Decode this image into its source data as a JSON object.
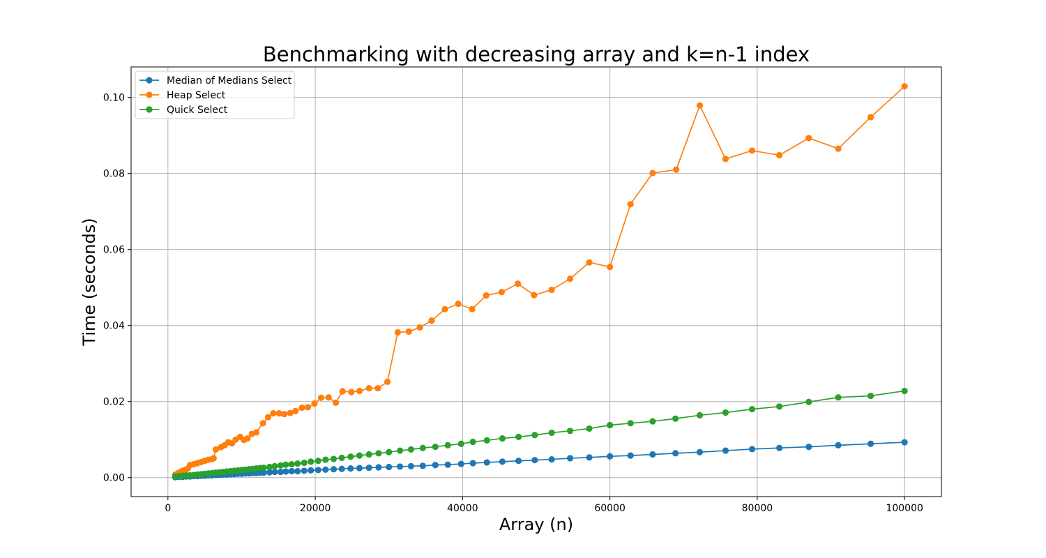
{
  "chart_data": {
    "type": "line",
    "title": "Benchmarking with decreasing array and k=n-1 index",
    "xlabel": "Array (n)",
    "ylabel": "Time (seconds)",
    "xlim": [
      -5000,
      105000
    ],
    "ylim": [
      -0.005,
      0.108
    ],
    "xticks": [
      0,
      20000,
      40000,
      60000,
      80000,
      100000
    ],
    "yticks": [
      0.0,
      0.02,
      0.04,
      0.06,
      0.08,
      0.1
    ],
    "xtick_labels": [
      "0",
      "20000",
      "40000",
      "60000",
      "80000",
      "100000"
    ],
    "ytick_labels": [
      "0.00",
      "0.02",
      "0.04",
      "0.06",
      "0.08",
      "0.10"
    ],
    "grid": true,
    "legend_position": "top-left",
    "markers": "circle",
    "series": [
      {
        "name": "Median of Medians Select",
        "color": "#1f77b4",
        "points": [
          [
            1000,
            0.0001
          ],
          [
            1500,
            0.0002
          ],
          [
            2000,
            0.0002
          ],
          [
            2500,
            0.0003
          ],
          [
            3000,
            0.0003
          ],
          [
            3500,
            0.0004
          ],
          [
            4000,
            0.0004
          ],
          [
            4500,
            0.0005
          ],
          [
            5000,
            0.0005
          ],
          [
            5500,
            0.0006
          ],
          [
            6000,
            0.0006
          ],
          [
            6500,
            0.0007
          ],
          [
            7000,
            0.0007
          ],
          [
            7500,
            0.0008
          ],
          [
            8000,
            0.0008
          ],
          [
            8500,
            0.0009
          ],
          [
            9000,
            0.0009
          ],
          [
            9500,
            0.001
          ],
          [
            10000,
            0.001
          ],
          [
            10500,
            0.0011
          ],
          [
            11000,
            0.0011
          ],
          [
            11500,
            0.0012
          ],
          [
            12000,
            0.0012
          ],
          [
            12500,
            0.0013
          ],
          [
            13000,
            0.0013
          ],
          [
            13800,
            0.0014
          ],
          [
            14500,
            0.0015
          ],
          [
            15300,
            0.0015
          ],
          [
            16000,
            0.0016
          ],
          [
            16800,
            0.0017
          ],
          [
            17600,
            0.0017
          ],
          [
            18500,
            0.0018
          ],
          [
            19400,
            0.0019
          ],
          [
            20400,
            0.002
          ],
          [
            21400,
            0.0021
          ],
          [
            22500,
            0.0022
          ],
          [
            23600,
            0.0023
          ],
          [
            24800,
            0.0024
          ],
          [
            26000,
            0.0025
          ],
          [
            27300,
            0.0026
          ],
          [
            28600,
            0.0027
          ],
          [
            30000,
            0.0028
          ],
          [
            31500,
            0.0029
          ],
          [
            33000,
            0.003
          ],
          [
            34600,
            0.0031
          ],
          [
            36300,
            0.0033
          ],
          [
            38000,
            0.0034
          ],
          [
            39800,
            0.0036
          ],
          [
            41400,
            0.0038
          ],
          [
            43300,
            0.004
          ],
          [
            45400,
            0.0042
          ],
          [
            47600,
            0.0044
          ],
          [
            49800,
            0.0046
          ],
          [
            52100,
            0.0048
          ],
          [
            54600,
            0.0051
          ],
          [
            57200,
            0.0053
          ],
          [
            60000,
            0.0056
          ],
          [
            62800,
            0.0058
          ],
          [
            65800,
            0.0061
          ],
          [
            68900,
            0.0064
          ],
          [
            72200,
            0.0067
          ],
          [
            75700,
            0.0071
          ],
          [
            79300,
            0.0075
          ],
          [
            83000,
            0.0078
          ],
          [
            87000,
            0.0081
          ],
          [
            91000,
            0.0085
          ],
          [
            95400,
            0.0089
          ],
          [
            100000,
            0.0093
          ]
        ]
      },
      {
        "name": "Heap Select",
        "color": "#ff7f0e",
        "points": [
          [
            1000,
            0.0008
          ],
          [
            1400,
            0.0012
          ],
          [
            1700,
            0.0015
          ],
          [
            2000,
            0.0018
          ],
          [
            2400,
            0.0021
          ],
          [
            2700,
            0.0024
          ],
          [
            3000,
            0.0033
          ],
          [
            3500,
            0.0035
          ],
          [
            4000,
            0.0038
          ],
          [
            4500,
            0.0041
          ],
          [
            5000,
            0.0044
          ],
          [
            5500,
            0.0047
          ],
          [
            6000,
            0.0049
          ],
          [
            6200,
            0.0051
          ],
          [
            6500,
            0.0074
          ],
          [
            7200,
            0.008
          ],
          [
            7700,
            0.0085
          ],
          [
            8200,
            0.0093
          ],
          [
            8700,
            0.009
          ],
          [
            9200,
            0.01
          ],
          [
            9800,
            0.0107
          ],
          [
            10300,
            0.0099
          ],
          [
            10800,
            0.0103
          ],
          [
            11400,
            0.0115
          ],
          [
            12000,
            0.0119
          ],
          [
            12900,
            0.0143
          ],
          [
            13600,
            0.0159
          ],
          [
            14300,
            0.0169
          ],
          [
            15100,
            0.0169
          ],
          [
            15800,
            0.0167
          ],
          [
            16600,
            0.017
          ],
          [
            17300,
            0.0175
          ],
          [
            18200,
            0.0184
          ],
          [
            19000,
            0.0185
          ],
          [
            19900,
            0.0195
          ],
          [
            20800,
            0.021
          ],
          [
            21800,
            0.0211
          ],
          [
            22800,
            0.0197
          ],
          [
            23700,
            0.0227
          ],
          [
            24900,
            0.0225
          ],
          [
            26000,
            0.0228
          ],
          [
            27300,
            0.0235
          ],
          [
            28500,
            0.0235
          ],
          [
            29800,
            0.0252
          ],
          [
            31200,
            0.0382
          ],
          [
            32700,
            0.0384
          ],
          [
            34200,
            0.0395
          ],
          [
            35800,
            0.0413
          ],
          [
            37600,
            0.0443
          ],
          [
            39400,
            0.0457
          ],
          [
            41300,
            0.0443
          ],
          [
            43200,
            0.0479
          ],
          [
            45300,
            0.0488
          ],
          [
            47500,
            0.051
          ],
          [
            49700,
            0.048
          ],
          [
            52100,
            0.0494
          ],
          [
            54600,
            0.0523
          ],
          [
            57200,
            0.0566
          ],
          [
            60000,
            0.0554
          ],
          [
            62800,
            0.0719
          ],
          [
            65800,
            0.0801
          ],
          [
            69000,
            0.081
          ],
          [
            72200,
            0.0979
          ],
          [
            75700,
            0.0838
          ],
          [
            79300,
            0.086
          ],
          [
            83000,
            0.0848
          ],
          [
            87000,
            0.0893
          ],
          [
            91000,
            0.0865
          ],
          [
            95400,
            0.0948
          ],
          [
            100000,
            0.1029
          ]
        ]
      },
      {
        "name": "Quick Select",
        "color": "#2ca02c",
        "points": [
          [
            1000,
            0.0003
          ],
          [
            1500,
            0.0004
          ],
          [
            2000,
            0.0005
          ],
          [
            2500,
            0.0006
          ],
          [
            3000,
            0.0006
          ],
          [
            3500,
            0.0007
          ],
          [
            4000,
            0.0008
          ],
          [
            4500,
            0.0009
          ],
          [
            5000,
            0.001
          ],
          [
            5500,
            0.0011
          ],
          [
            6000,
            0.0012
          ],
          [
            6500,
            0.0013
          ],
          [
            7000,
            0.0014
          ],
          [
            7500,
            0.0015
          ],
          [
            8000,
            0.0016
          ],
          [
            8500,
            0.0017
          ],
          [
            9000,
            0.0018
          ],
          [
            9500,
            0.0019
          ],
          [
            10000,
            0.002
          ],
          [
            10500,
            0.0021
          ],
          [
            11000,
            0.0022
          ],
          [
            11500,
            0.0023
          ],
          [
            12000,
            0.0024
          ],
          [
            12500,
            0.0025
          ],
          [
            13000,
            0.0026
          ],
          [
            13800,
            0.0028
          ],
          [
            14500,
            0.003
          ],
          [
            15300,
            0.0032
          ],
          [
            16000,
            0.0034
          ],
          [
            16800,
            0.0035
          ],
          [
            17600,
            0.0037
          ],
          [
            18500,
            0.0039
          ],
          [
            19400,
            0.0042
          ],
          [
            20400,
            0.0044
          ],
          [
            21400,
            0.0047
          ],
          [
            22500,
            0.0049
          ],
          [
            23600,
            0.0052
          ],
          [
            24800,
            0.0055
          ],
          [
            26000,
            0.0058
          ],
          [
            27300,
            0.0061
          ],
          [
            28600,
            0.0064
          ],
          [
            30000,
            0.0067
          ],
          [
            31500,
            0.0071
          ],
          [
            33000,
            0.0074
          ],
          [
            34600,
            0.0078
          ],
          [
            36300,
            0.0081
          ],
          [
            38000,
            0.0085
          ],
          [
            39800,
            0.0089
          ],
          [
            41400,
            0.0094
          ],
          [
            43300,
            0.0098
          ],
          [
            45400,
            0.0103
          ],
          [
            47600,
            0.0107
          ],
          [
            49800,
            0.0112
          ],
          [
            52100,
            0.0118
          ],
          [
            54600,
            0.0123
          ],
          [
            57200,
            0.0129
          ],
          [
            60000,
            0.0138
          ],
          [
            62800,
            0.0143
          ],
          [
            65800,
            0.0148
          ],
          [
            68900,
            0.0155
          ],
          [
            72200,
            0.0164
          ],
          [
            75700,
            0.0171
          ],
          [
            79300,
            0.018
          ],
          [
            83000,
            0.0187
          ],
          [
            87000,
            0.0199
          ],
          [
            91000,
            0.0211
          ],
          [
            95400,
            0.0215
          ],
          [
            100000,
            0.0228
          ]
        ]
      }
    ]
  }
}
